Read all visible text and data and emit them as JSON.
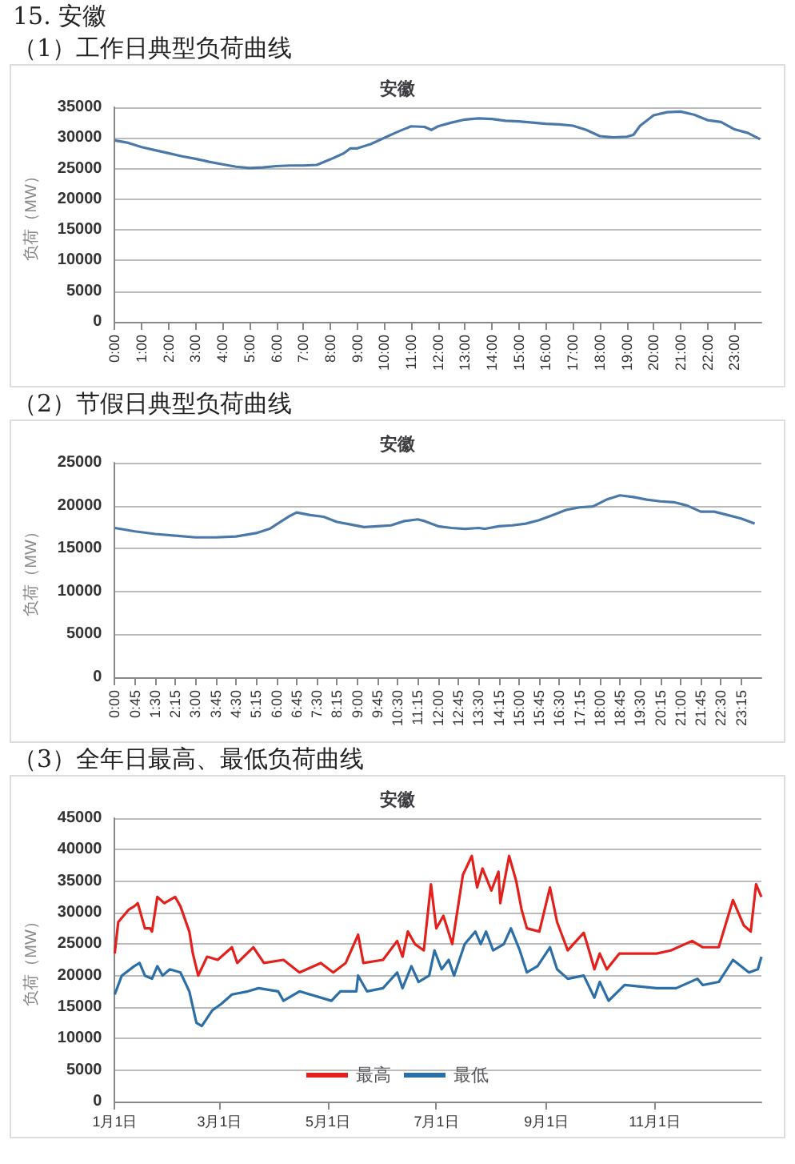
{
  "chart_data": [
    {
      "type": "line",
      "title": "安徽",
      "subtitle": "（1）工作日典型负荷曲线",
      "annotations": [
        "15. 安徽"
      ],
      "ylabel": "负荷（MW）",
      "grid": "y",
      "marker": "none",
      "legend": false,
      "xlim": [
        0,
        24
      ],
      "xticks": [
        {
          "value": 0,
          "label": "0:00"
        },
        {
          "value": 1,
          "label": "1:00"
        },
        {
          "value": 2,
          "label": "2:00"
        },
        {
          "value": 3,
          "label": "3:00"
        },
        {
          "value": 4,
          "label": "4:00"
        },
        {
          "value": 5,
          "label": "5:00"
        },
        {
          "value": 6,
          "label": "6:00"
        },
        {
          "value": 7,
          "label": "7:00"
        },
        {
          "value": 8,
          "label": "8:00"
        },
        {
          "value": 9,
          "label": "9:00"
        },
        {
          "value": 10,
          "label": "10:00"
        },
        {
          "value": 11,
          "label": "11:00"
        },
        {
          "value": 12,
          "label": "12:00"
        },
        {
          "value": 13,
          "label": "13:00"
        },
        {
          "value": 14,
          "label": "14:00"
        },
        {
          "value": 15,
          "label": "15:00"
        },
        {
          "value": 16,
          "label": "16:00"
        },
        {
          "value": 17,
          "label": "17:00"
        },
        {
          "value": 18,
          "label": "18:00"
        },
        {
          "value": 19,
          "label": "19:00"
        },
        {
          "value": 20,
          "label": "20:00"
        },
        {
          "value": 21,
          "label": "21:00"
        },
        {
          "value": 22,
          "label": "22:00"
        },
        {
          "value": 23,
          "label": "23:00"
        }
      ],
      "ylim": [
        0,
        35000
      ],
      "yticks": [
        0,
        5000,
        10000,
        15000,
        20000,
        25000,
        30000,
        35000
      ],
      "series": [
        {
          "color": "#4a78a8",
          "x": [
            0,
            0.5,
            1,
            1.5,
            2,
            2.5,
            3,
            3.5,
            4,
            4.5,
            5,
            5.5,
            6,
            6.5,
            7,
            7.5,
            8,
            8.5,
            8.75,
            9,
            9.5,
            10,
            10.5,
            11,
            11.5,
            11.75,
            12,
            12.5,
            13,
            13.5,
            14,
            14.5,
            15,
            15.5,
            16,
            16.5,
            17,
            17.5,
            18,
            18.5,
            19,
            19.25,
            19.5,
            20,
            20.5,
            21,
            21.5,
            22,
            22.5,
            23,
            23.5,
            23.95
          ],
          "values": [
            29600,
            29200,
            28500,
            28000,
            27500,
            27000,
            26600,
            26100,
            25700,
            25300,
            25100,
            25200,
            25400,
            25500,
            25500,
            25600,
            26500,
            27500,
            28300,
            28300,
            29000,
            30000,
            31000,
            31900,
            31800,
            31300,
            31900,
            32500,
            33000,
            33200,
            33100,
            32800,
            32700,
            32500,
            32300,
            32200,
            32000,
            31300,
            30300,
            30100,
            30200,
            30500,
            32000,
            33700,
            34200,
            34300,
            33800,
            32900,
            32600,
            31400,
            30800,
            29800
          ]
        }
      ]
    },
    {
      "type": "line",
      "title": "安徽",
      "subtitle": "（2）节假日典型负荷曲线",
      "ylabel": "负荷（MW）",
      "grid": "y",
      "marker": "none",
      "legend": false,
      "xlim": [
        0,
        24
      ],
      "xticks": [
        {
          "value": 0,
          "label": "0:00"
        },
        {
          "value": 0.75,
          "label": "0:45"
        },
        {
          "value": 1.5,
          "label": "1:30"
        },
        {
          "value": 2.25,
          "label": "2:15"
        },
        {
          "value": 3,
          "label": "3:00"
        },
        {
          "value": 3.75,
          "label": "3:45"
        },
        {
          "value": 4.5,
          "label": "4:30"
        },
        {
          "value": 5.25,
          "label": "5:15"
        },
        {
          "value": 6,
          "label": "6:00"
        },
        {
          "value": 6.75,
          "label": "6:45"
        },
        {
          "value": 7.5,
          "label": "7:30"
        },
        {
          "value": 8.25,
          "label": "8:15"
        },
        {
          "value": 9,
          "label": "9:00"
        },
        {
          "value": 9.75,
          "label": "9:45"
        },
        {
          "value": 10.5,
          "label": "10:30"
        },
        {
          "value": 11.25,
          "label": "11:15"
        },
        {
          "value": 12,
          "label": "12:00"
        },
        {
          "value": 12.75,
          "label": "12:45"
        },
        {
          "value": 13.5,
          "label": "13:30"
        },
        {
          "value": 14.25,
          "label": "14:15"
        },
        {
          "value": 15,
          "label": "15:00"
        },
        {
          "value": 15.75,
          "label": "15:45"
        },
        {
          "value": 16.5,
          "label": "16:30"
        },
        {
          "value": 17.25,
          "label": "17:15"
        },
        {
          "value": 18,
          "label": "18:00"
        },
        {
          "value": 18.75,
          "label": "18:45"
        },
        {
          "value": 19.5,
          "label": "19:30"
        },
        {
          "value": 20.25,
          "label": "20:15"
        },
        {
          "value": 21,
          "label": "21:00"
        },
        {
          "value": 21.75,
          "label": "21:45"
        },
        {
          "value": 22.5,
          "label": "22:30"
        },
        {
          "value": 23.25,
          "label": "23:15"
        }
      ],
      "ylim": [
        0,
        25000
      ],
      "yticks": [
        0,
        5000,
        10000,
        15000,
        20000,
        25000
      ],
      "series": [
        {
          "color": "#4a78a8",
          "x": [
            0,
            0.75,
            1.5,
            2.25,
            3,
            3.75,
            4.5,
            5.25,
            5.75,
            6,
            6.5,
            6.75,
            7.25,
            7.75,
            8.25,
            8.75,
            9.25,
            9.75,
            10.25,
            10.75,
            11.25,
            11.5,
            12,
            12.5,
            13,
            13.5,
            13.75,
            14.25,
            14.75,
            15.25,
            15.75,
            16.25,
            16.75,
            17.25,
            17.75,
            18.25,
            18.75,
            19.25,
            19.75,
            20.25,
            20.75,
            21.25,
            21.75,
            22.25,
            22.75,
            23.25,
            23.75
          ],
          "values": [
            17400,
            17000,
            16700,
            16500,
            16300,
            16300,
            16400,
            16800,
            17300,
            17800,
            18800,
            19200,
            18900,
            18700,
            18100,
            17800,
            17500,
            17600,
            17700,
            18200,
            18400,
            18200,
            17600,
            17400,
            17300,
            17400,
            17300,
            17600,
            17700,
            17900,
            18300,
            18900,
            19500,
            19800,
            19900,
            20700,
            21200,
            21000,
            20700,
            20500,
            20400,
            20000,
            19300,
            19300,
            18900,
            18500,
            17900
          ]
        }
      ]
    },
    {
      "type": "line",
      "title": "安徽",
      "subtitle": "（3）全年日最高、最低负荷曲线",
      "ylabel": "负荷（MW）",
      "grid": "y",
      "marker": "none",
      "legend": "bottom",
      "xlim": [
        "--01-01",
        "--12-31"
      ],
      "xticks": [
        {
          "value": "--01-01",
          "label": "1月1日"
        },
        {
          "value": "--03-01",
          "label": "3月1日"
        },
        {
          "value": "--05-01",
          "label": "5月1日"
        },
        {
          "value": "--07-01",
          "label": "7月1日"
        },
        {
          "value": "--09-01",
          "label": "9月1日"
        },
        {
          "value": "--11-01",
          "label": "11月1日"
        }
      ],
      "ylim": [
        0,
        45000
      ],
      "yticks": [
        0,
        5000,
        10000,
        15000,
        20000,
        25000,
        30000,
        35000,
        40000,
        45000
      ],
      "series": [
        {
          "name": "最高",
          "color": "#e3211c",
          "x": [
            "--01-01",
            "--01-03",
            "--01-09",
            "--01-12",
            "--01-14",
            "--01-18",
            "--01-21",
            "--01-22",
            "--01-25",
            "--01-29",
            "--02-04",
            "--02-07",
            "--02-12",
            "--02-14",
            "--02-17",
            "--02-22",
            "--02-28",
            "--03-08",
            "--03-11",
            "--03-20",
            "--03-26",
            "--04-06",
            "--04-15",
            "--04-27",
            "--05-04",
            "--05-11",
            "--05-18",
            "--05-21",
            "--06-01",
            "--06-09",
            "--06-12",
            "--06-15",
            "--06-19",
            "--06-24",
            "--06-28",
            "--07-01",
            "--07-05",
            "--07-10",
            "--07-16",
            "--07-21",
            "--07-24",
            "--07-27",
            "--08-01",
            "--08-05",
            "--08-06",
            "--08-11",
            "--08-15",
            "--08-18",
            "--08-21",
            "--08-28",
            "--09-03",
            "--09-07",
            "--09-13",
            "--09-22",
            "--09-25",
            "--09-28",
            "--10-01",
            "--10-05",
            "--10-12",
            "--11-02",
            "--11-10",
            "--11-22",
            "--11-28",
            "--12-07",
            "--12-15",
            "--12-21",
            "--12-25",
            "--12-28",
            "--12-31"
          ],
          "values": [
            23500,
            28500,
            30500,
            31000,
            31500,
            27500,
            27500,
            27000,
            32500,
            31500,
            32500,
            31000,
            27000,
            23500,
            20000,
            23000,
            22500,
            24500,
            22000,
            24500,
            22000,
            22500,
            20500,
            22000,
            20500,
            22000,
            26500,
            22000,
            22500,
            25500,
            23000,
            27000,
            25000,
            24000,
            34500,
            27500,
            29500,
            25000,
            36000,
            39000,
            34000,
            37000,
            33500,
            36500,
            31500,
            39000,
            35000,
            30500,
            27500,
            27000,
            34000,
            28500,
            24000,
            26800,
            24000,
            21000,
            23500,
            21000,
            23500,
            23500,
            24000,
            25500,
            24500,
            24500,
            32000,
            28000,
            27000,
            34500,
            32500
          ]
        },
        {
          "name": "最低",
          "color": "#2b6fa6",
          "x": [
            "--01-01",
            "--01-05",
            "--01-12",
            "--01-15",
            "--01-18",
            "--01-22",
            "--01-25",
            "--01-28",
            "--02-01",
            "--02-07",
            "--02-12",
            "--02-16",
            "--02-19",
            "--02-25",
            "--03-02",
            "--03-08",
            "--03-17",
            "--03-23",
            "--04-03",
            "--04-06",
            "--04-15",
            "--05-03",
            "--05-08",
            "--05-17",
            "--05-18",
            "--05-23",
            "--06-01",
            "--06-09",
            "--06-12",
            "--06-17",
            "--06-21",
            "--06-27",
            "--06-30",
            "--07-04",
            "--07-08",
            "--07-11",
            "--07-17",
            "--07-23",
            "--07-26",
            "--07-29",
            "--08-02",
            "--08-08",
            "--08-12",
            "--08-17",
            "--08-21",
            "--08-27",
            "--09-03",
            "--09-07",
            "--09-13",
            "--09-22",
            "--09-28",
            "--10-01",
            "--10-06",
            "--10-15",
            "--11-02",
            "--11-13",
            "--11-25",
            "--11-28",
            "--12-07",
            "--12-15",
            "--12-24",
            "--12-29",
            "--12-31"
          ],
          "values": [
            17000,
            20000,
            21500,
            22000,
            20000,
            19500,
            21500,
            20000,
            21000,
            20500,
            17500,
            12500,
            12000,
            14500,
            15500,
            17000,
            17500,
            18000,
            17500,
            16000,
            17500,
            16000,
            17500,
            17500,
            20000,
            17500,
            18000,
            20500,
            18000,
            21500,
            19000,
            20000,
            24000,
            21000,
            22500,
            20000,
            25000,
            27000,
            25000,
            27000,
            24000,
            25000,
            27500,
            24000,
            20500,
            21500,
            24500,
            21000,
            19500,
            20000,
            16500,
            19000,
            16000,
            18500,
            18000,
            18000,
            19500,
            18500,
            19000,
            22500,
            20500,
            21000,
            23000
          ]
        }
      ]
    }
  ]
}
